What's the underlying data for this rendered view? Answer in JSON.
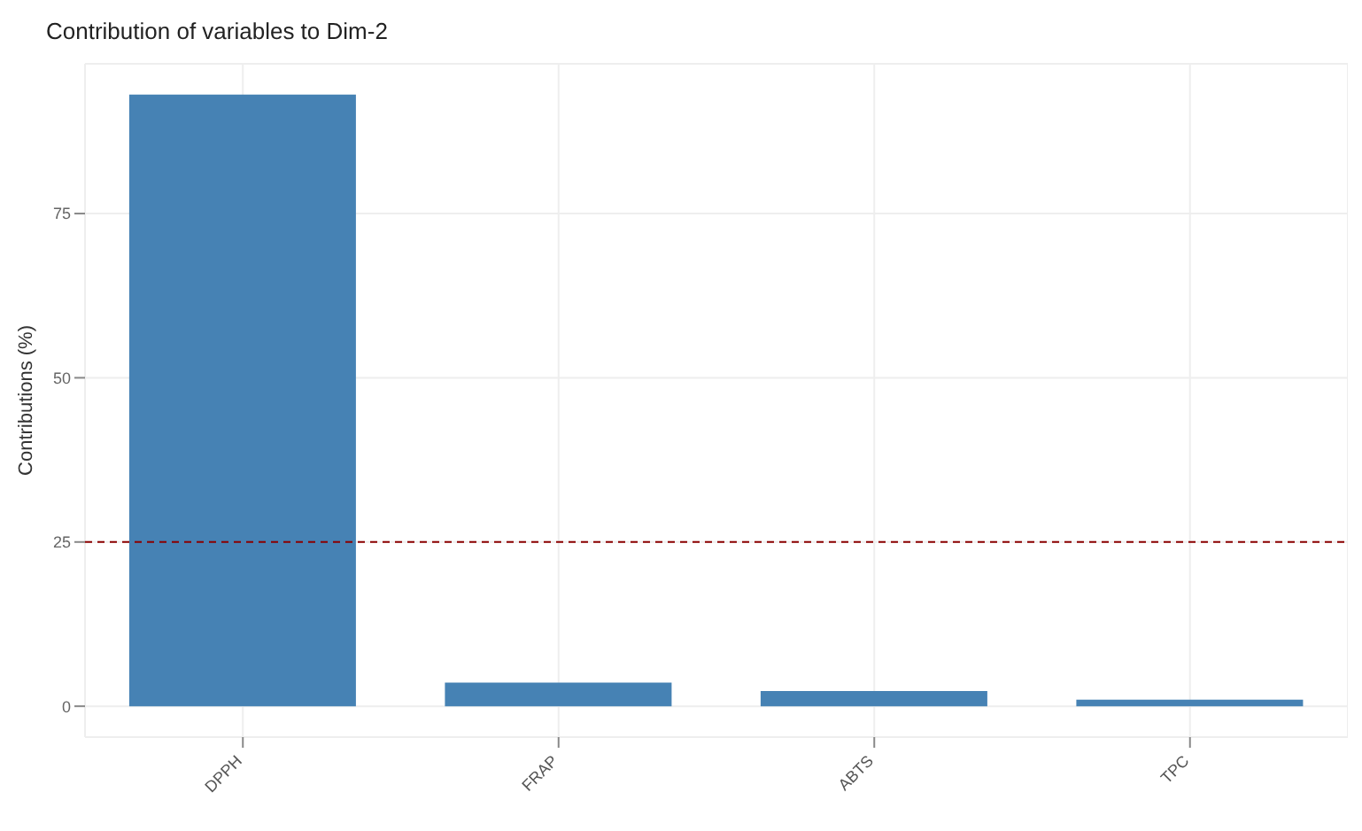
{
  "chart_data": {
    "type": "bar",
    "title": "Contribution of variables to Dim-2",
    "ylabel": "Contributions (%)",
    "categories": [
      "DPPH",
      "FRAP",
      "ABTS",
      "TPC"
    ],
    "values": [
      93.1,
      3.6,
      2.3,
      1.0
    ],
    "color": "#4682b4",
    "ylim": [
      -4.7,
      97.8
    ],
    "yticks": [
      0,
      25,
      50,
      75
    ],
    "grid": true,
    "ref_lines": [
      {
        "axis": "y",
        "value": 25,
        "color": "#8b0000",
        "line_style": "dashed"
      }
    ]
  }
}
